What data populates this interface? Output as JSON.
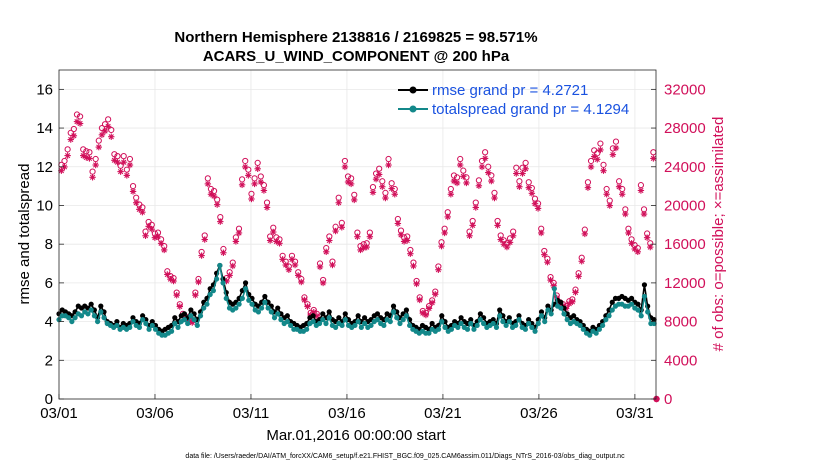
{
  "chart_data": {
    "type": "line",
    "title_line1": "Northern Hemisphere 2138816 / 2169825 = 98.571%",
    "title_line2": "ACARS_U_WIND_COMPONENT @ 200 hPa",
    "xlabel": "Mar.01,2016 00:00:00 start",
    "ylabel_left": "rmse and totalspread",
    "ylabel_right": "# of obs: o=possible; ×=assimilated",
    "footer": "data file: /Users/raeder/DAI/ATM_forcXX/CAM6_setup/f.e21.FHIST_BGC.f09_025.CAM6assim.011/Diags_NTrS_2016-03/obs_diag_output.nc",
    "x_range": [
      1,
      32.1
    ],
    "xticks": [
      1,
      6,
      11,
      16,
      21,
      26,
      31
    ],
    "xtick_labels": [
      "03/01",
      "03/06",
      "03/11",
      "03/16",
      "03/21",
      "03/26",
      "03/31"
    ],
    "ylim_left": [
      0,
      17
    ],
    "yticks_left": [
      0,
      2,
      4,
      6,
      8,
      10,
      12,
      14,
      16
    ],
    "ytick_labels_left": [
      "0",
      "2",
      "4",
      "6",
      "8",
      "10",
      "12",
      "14",
      "16"
    ],
    "ylim_right": [
      0,
      34000
    ],
    "yticks_right": [
      0,
      4000,
      8000,
      12000,
      16000,
      20000,
      24000,
      28000,
      32000
    ],
    "ytick_labels_right": [
      "0",
      "4000",
      "8000",
      "12000",
      "16000",
      "20000",
      "24000",
      "28000",
      "32000"
    ],
    "grid": true,
    "legend_position": "top-right",
    "colors": {
      "rmse": "#000000",
      "spread": "#13888a",
      "obs": "#d1105a",
      "legend_text": "#1a52e0"
    },
    "series": [
      {
        "name": "rmse grand pr = 4.2721",
        "key": "rmse",
        "values": [
          4.4,
          4.6,
          4.5,
          4.4,
          4.3,
          4.5,
          4.8,
          4.7,
          4.8,
          4.7,
          4.9,
          4.6,
          4.2,
          4.8,
          4.5,
          4.0,
          3.9,
          3.8,
          4.0,
          3.7,
          3.9,
          3.8,
          3.9,
          4.2,
          4.0,
          3.9,
          4.3,
          4.1,
          3.8,
          4.0,
          3.8,
          3.6,
          3.5,
          3.6,
          3.7,
          3.8,
          4.2,
          4.0,
          4.3,
          4.4,
          4.2,
          4.6,
          4.4,
          4.1,
          4.5,
          5.0,
          5.2,
          5.7,
          5.9,
          6.5,
          6.9,
          6.2,
          5.5,
          5.0,
          4.9,
          5.0,
          5.2,
          5.6,
          6.0,
          5.4,
          5.2,
          4.9,
          4.8,
          5.0,
          5.3,
          5.0,
          4.8,
          4.5,
          4.7,
          4.4,
          4.2,
          4.3,
          4.0,
          3.9,
          3.8,
          3.7,
          3.8,
          3.9,
          4.2,
          4.3,
          4.0,
          4.1,
          4.4,
          4.2,
          4.5,
          4.1,
          4.0,
          4.2,
          4.0,
          4.4,
          4.1,
          3.9,
          4.0,
          4.3,
          4.0,
          4.2,
          4.0,
          4.1,
          4.3,
          4.4,
          4.2,
          4.1,
          4.4,
          4.3,
          4.8,
          4.5,
          4.2,
          4.4,
          4.6,
          4.1,
          3.8,
          3.7,
          3.6,
          3.8,
          3.7,
          3.6,
          3.9,
          3.7,
          3.8,
          4.3,
          4.0,
          3.7,
          3.8,
          4.0,
          3.9,
          4.2,
          4.0,
          3.9,
          4.1,
          3.8,
          4.0,
          4.4,
          4.2,
          3.9,
          4.0,
          4.1,
          3.9,
          4.6,
          4.3,
          4.0,
          4.2,
          3.9,
          4.0,
          4.3,
          3.9,
          3.8,
          4.1,
          3.9,
          3.7,
          4.1,
          4.5,
          4.2,
          4.8,
          4.6,
          4.9,
          5.1,
          5.0,
          4.7,
          4.4,
          4.2,
          4.3,
          4.1,
          4.0,
          3.8,
          3.6,
          3.5,
          3.7,
          3.6,
          3.8,
          4.0,
          4.3,
          4.6,
          5.0,
          5.2,
          5.2,
          5.3,
          5.2,
          5.1,
          5.2,
          5.0,
          4.9,
          4.6,
          5.9,
          4.8,
          4.2,
          4.1
        ]
      },
      {
        "name": "totalspread grand pr = 4.1294",
        "key": "spread",
        "values": [
          4.1,
          4.3,
          4.3,
          4.2,
          4.0,
          4.2,
          4.4,
          4.3,
          4.5,
          4.4,
          4.6,
          4.3,
          4.0,
          4.5,
          4.2,
          3.9,
          3.8,
          3.7,
          3.8,
          3.6,
          3.7,
          3.6,
          3.7,
          4.0,
          3.8,
          3.7,
          4.1,
          3.9,
          3.6,
          3.8,
          3.6,
          3.4,
          3.3,
          3.3,
          3.4,
          3.5,
          3.9,
          3.7,
          4.0,
          4.1,
          3.9,
          4.3,
          4.1,
          3.8,
          4.3,
          4.7,
          4.9,
          5.4,
          5.6,
          6.2,
          6.9,
          6.0,
          5.2,
          4.7,
          4.6,
          4.7,
          4.9,
          5.2,
          5.7,
          5.1,
          4.9,
          4.6,
          4.5,
          4.7,
          5.0,
          4.7,
          4.5,
          4.2,
          4.4,
          4.1,
          3.9,
          4.0,
          3.8,
          3.6,
          3.6,
          3.5,
          3.5,
          3.6,
          3.9,
          4.0,
          3.8,
          3.9,
          4.1,
          3.9,
          4.2,
          3.8,
          3.7,
          3.9,
          3.8,
          4.1,
          3.8,
          3.7,
          3.8,
          4.0,
          3.7,
          3.9,
          3.7,
          3.8,
          4.0,
          4.1,
          3.9,
          3.8,
          4.1,
          4.0,
          4.5,
          4.2,
          3.9,
          4.1,
          4.3,
          3.8,
          3.6,
          3.5,
          3.4,
          3.5,
          3.4,
          3.4,
          3.6,
          3.5,
          3.6,
          4.0,
          3.7,
          3.5,
          3.6,
          3.8,
          3.7,
          3.9,
          3.7,
          3.6,
          3.9,
          3.6,
          3.8,
          4.1,
          3.9,
          3.7,
          3.8,
          3.9,
          3.7,
          4.3,
          4.0,
          3.8,
          4.0,
          3.7,
          3.8,
          4.1,
          3.7,
          3.6,
          3.9,
          3.7,
          3.5,
          3.9,
          4.3,
          4.0,
          4.6,
          4.4,
          5.7,
          4.8,
          4.7,
          4.4,
          4.1,
          3.9,
          4.0,
          3.9,
          3.8,
          3.6,
          3.4,
          3.3,
          3.5,
          3.4,
          3.6,
          3.8,
          4.1,
          4.3,
          4.6,
          4.8,
          4.9,
          4.9,
          4.8,
          4.8,
          4.9,
          4.7,
          4.6,
          4.3,
          5.3,
          4.5,
          3.9,
          3.9
        ]
      }
    ],
    "obs_possible": [
      24200,
      24600,
      25800,
      27500,
      27900,
      29400,
      29200,
      25800,
      25600,
      25500,
      23500,
      24800,
      26700,
      28000,
      28400,
      28900,
      27800,
      25300,
      25100,
      24100,
      25100,
      23700,
      24800,
      22000,
      20800,
      20100,
      19800,
      17300,
      18300,
      18000,
      17100,
      17200,
      16500,
      15800,
      13200,
      12700,
      12500,
      11000,
      9800,
      8800,
      8500,
      8200,
      8100,
      11000,
      12400,
      15200,
      16900,
      22800,
      21700,
      21500,
      20600,
      18800,
      15500,
      12500,
      13100,
      14100,
      16700,
      17600,
      22700,
      24600,
      23700,
      21200,
      22800,
      24400,
      23000,
      22100,
      20300,
      16800,
      17700,
      16700,
      16500,
      14800,
      14200,
      13700,
      14800,
      14200,
      13100,
      12400,
      10500,
      9800,
      8900,
      9200,
      8800,
      14000,
      12300,
      15600,
      16800,
      14200,
      17800,
      20800,
      18200,
      24600,
      23000,
      22800,
      21100,
      17200,
      15800,
      16000,
      16100,
      17200,
      21900,
      23300,
      23800,
      22500,
      21300,
      24800,
      22300,
      21700,
      18600,
      17400,
      16700,
      16800,
      15400,
      14100,
      12200,
      10500,
      9100,
      8900,
      9600,
      10200,
      11100,
      13700,
      16200,
      17600,
      19300,
      21700,
      23100,
      22900,
      24800,
      23600,
      22900,
      17300,
      18400,
      20300,
      22600,
      24600,
      25500,
      24000,
      23100,
      21300,
      18400,
      16900,
      16400,
      16100,
      16600,
      17300,
      23900,
      22500,
      23900,
      24400,
      22400,
      21800,
      20700,
      20200,
      17600,
      15300,
      14500,
      12600,
      12000,
      10700,
      10000,
      9800,
      9600,
      10100,
      10300,
      11300,
      13000,
      14600,
      17500,
      22400,
      24600,
      25700,
      25400,
      26400,
      24200,
      21700,
      20500,
      25900,
      26600,
      22500,
      21700,
      19600,
      17600,
      16500,
      15900,
      15600,
      22100,
      19600,
      17100,
      16100,
      25500,
      0
    ]
  }
}
